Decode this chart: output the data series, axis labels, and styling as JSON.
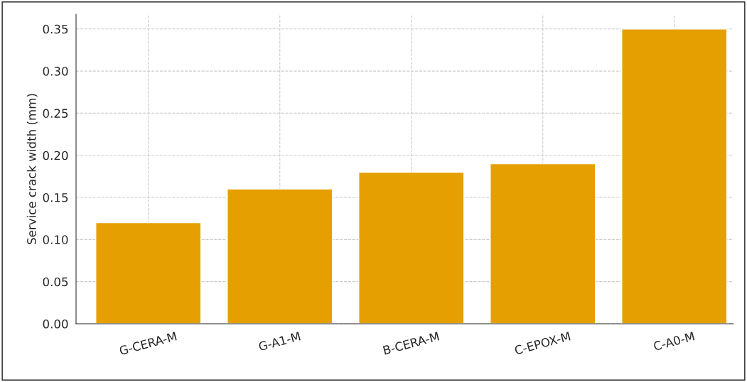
{
  "chart_data": {
    "type": "bar",
    "ylabel": "Service crack width (mm)",
    "categories": [
      "G-CERA-M",
      "G-A1-M",
      "B-CERA-M",
      "C-EPOX-M",
      "C-A0-M"
    ],
    "values": [
      0.12,
      0.16,
      0.18,
      0.19,
      0.35
    ],
    "color": "#e5a000",
    "ylim": [
      0,
      0.3675
    ],
    "yticks": [
      {
        "value": 0,
        "label": "0.00"
      },
      {
        "value": 0.05,
        "label": "0.05"
      },
      {
        "value": 0.1,
        "label": "0.10"
      },
      {
        "value": 0.15,
        "label": "0.15"
      },
      {
        "value": 0.2,
        "label": "0.20"
      },
      {
        "value": 0.25,
        "label": "0.25"
      },
      {
        "value": 0.3,
        "label": "0.30"
      },
      {
        "value": 0.35,
        "label": "0.35"
      }
    ],
    "grid": true
  }
}
